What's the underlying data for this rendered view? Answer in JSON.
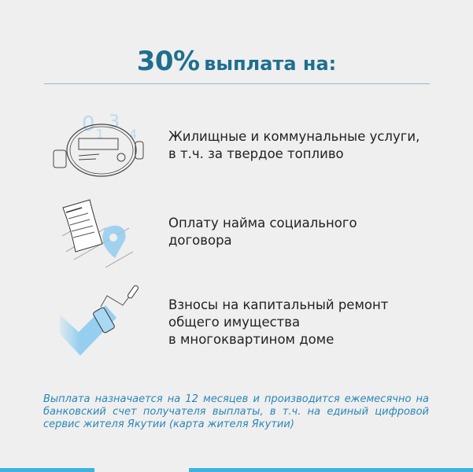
{
  "header": {
    "percent": "30%",
    "title_rest": "выплата на:"
  },
  "items": [
    {
      "icon": "water-meter-icon",
      "lines": [
        "Жилищные и коммунальные услуги,",
        "в т.ч. за твердое топливо"
      ]
    },
    {
      "icon": "contract-document-icon",
      "lines": [
        "Оплату найма социального",
        "договора"
      ]
    },
    {
      "icon": "paint-roller-icon",
      "lines": [
        "Взносы на капитальный ремонт",
        "общего имущества",
        "в многоквартином доме"
      ]
    }
  ],
  "meter_digits": [
    "0",
    "1",
    "3",
    "4"
  ],
  "note": "Выплата назначается на 12 месяцев и производится ежемесячно на банковский счет получателя выплаты, в т.ч. на единый цифровой сервис жителя Якутии (карта жителя Якутии)",
  "colors": {
    "title": "#1e6f8e",
    "accent": "#3db3e3",
    "note": "#2a86b8",
    "background": "#efefef"
  }
}
